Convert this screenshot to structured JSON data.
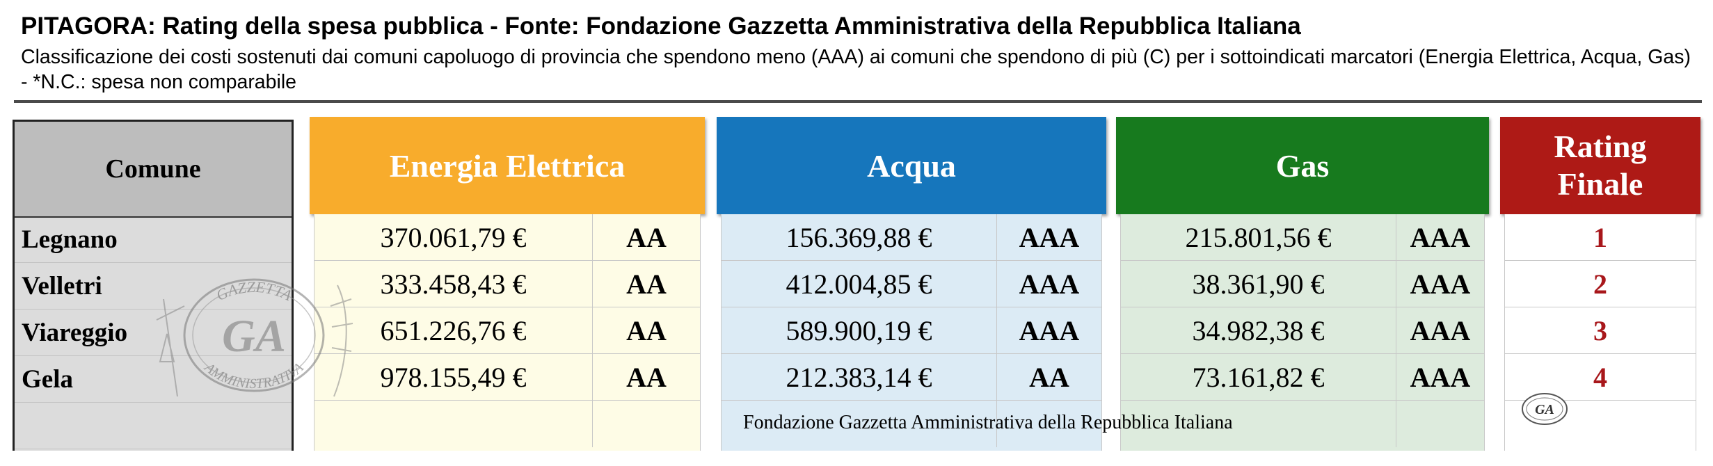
{
  "header": {
    "title": "PITAGORA: Rating della spesa pubblica - Fonte: Fondazione Gazzetta Amministrativa della Repubblica Italiana",
    "subtitle": "Classificazione dei costi sostenuti dai comuni capoluogo di provincia che spendono meno (AAA) ai comuni che spendono di più (C) per i sottoindicati marcatori (Energia Elettrica, Acqua, Gas) - *N.C.: spesa non comparabile"
  },
  "table": {
    "comune_header": "Comune",
    "groups": {
      "energia": {
        "title": "Energia Elettrica",
        "color": "#F8AC2C",
        "body_color": "#FEFCE6"
      },
      "acqua": {
        "title": "Acqua",
        "color": "#1676BC",
        "body_color": "#DCEBF5"
      },
      "gas": {
        "title": "Gas",
        "color": "#177A1E",
        "body_color": "#DDEBDD"
      }
    },
    "rating": {
      "title_line1": "Rating",
      "title_line2": "Finale",
      "color": "#AE1A16",
      "text_color": "#A8171B"
    },
    "rows": [
      {
        "comune": "Legnano",
        "energia_value": "370.061,79 €",
        "energia_rating": "AA",
        "acqua_value": "156.369,88 €",
        "acqua_rating": "AAA",
        "gas_value": "215.801,56 €",
        "gas_rating": "AAA",
        "rating_finale": "1"
      },
      {
        "comune": "Velletri",
        "energia_value": "333.458,43 €",
        "energia_rating": "AA",
        "acqua_value": "412.004,85 €",
        "acqua_rating": "AAA",
        "gas_value": "38.361,90 €",
        "gas_rating": "AAA",
        "rating_finale": "2"
      },
      {
        "comune": "Viareggio",
        "energia_value": "651.226,76 €",
        "energia_rating": "AA",
        "acqua_value": "589.900,19 €",
        "acqua_rating": "AAA",
        "gas_value": "34.982,38 €",
        "gas_rating": "AAA",
        "rating_finale": "3"
      },
      {
        "comune": "Gela",
        "energia_value": "978.155,49 €",
        "energia_rating": "AA",
        "acqua_value": "212.383,14 €",
        "acqua_rating": "AA",
        "gas_value": "73.161,82 €",
        "gas_rating": "AAA",
        "rating_finale": "4"
      }
    ]
  },
  "footer": {
    "source_note": "Fondazione Gazzetta Amministrativa della Repubblica Italiana"
  },
  "watermark": {
    "text_top": "GAZZETTA",
    "text_bottom": "AMMINISTRATIVA",
    "monogram": "GA",
    "icon": "gazzetta-seal-icon"
  },
  "mini_logo": {
    "monogram": "GA",
    "icon": "ga-logo-icon"
  }
}
